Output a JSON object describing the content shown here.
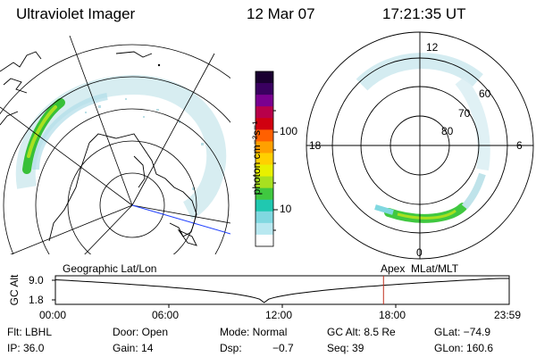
{
  "header": {
    "instrument": "Ultraviolet Imager",
    "date": "12 Mar 07",
    "time": "17:21:35 UT"
  },
  "colorbar": {
    "label": "photon cm⁻²s⁻¹",
    "ticks": [
      "100",
      "10"
    ],
    "colors": [
      "#1a0030",
      "#3a0060",
      "#7a0090",
      "#b8004a",
      "#d00010",
      "#ff6000",
      "#ffa000",
      "#ffd000",
      "#e8f000",
      "#a8e020",
      "#40c840",
      "#20c8b0",
      "#80d8e0",
      "#b8e8f0",
      "#ffffff"
    ]
  },
  "left_panel": {
    "caption": "Geographic Lat/Lon"
  },
  "right_panel": {
    "caption": "Apex  MLat/MLT",
    "mlt_labels": {
      "top": "12",
      "left": "18",
      "right": "6",
      "bottom": "0"
    },
    "lat_labels": [
      "60",
      "70",
      "80"
    ]
  },
  "timeline": {
    "y_axis_label": "GC Alt",
    "y_ticks": [
      "9.0",
      "1.8"
    ],
    "x_ticks": [
      "00:00",
      "06:00",
      "12:00",
      "18:00",
      "23:59"
    ],
    "current_time_fraction": 0.723
  },
  "info": {
    "flt": "Flt: LBHL",
    "ip": "IP: 36.0",
    "door": "Door: Open",
    "gain": "Gain: 14",
    "mode": "Mode: Normal",
    "dsp_label": "Dsp:",
    "dsp_value": "−0.7",
    "gc_alt": "GC Alt: 8.5 Re",
    "seq": "Seq: 39",
    "glat": "GLat: −74.9",
    "glon": "GLon: 160.6"
  }
}
